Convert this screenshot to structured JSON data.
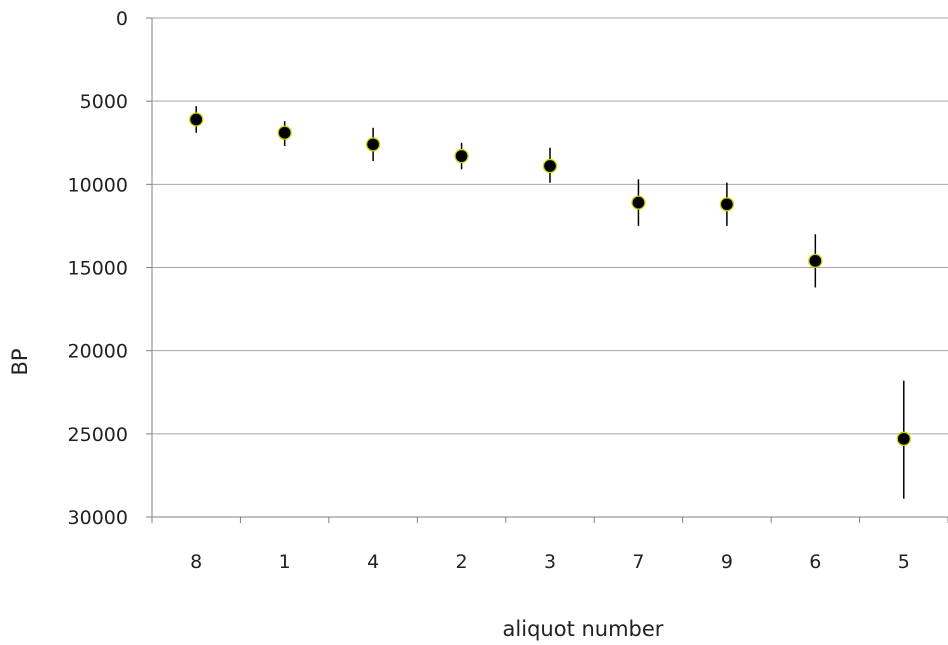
{
  "chart_data": {
    "type": "scatter",
    "xlabel": "aliquot number",
    "ylabel": "BP",
    "categories": [
      "8",
      "1",
      "4",
      "2",
      "3",
      "7",
      "9",
      "6",
      "5"
    ],
    "series": [
      {
        "values": [
          6100,
          6900,
          7600,
          8300,
          8900,
          11100,
          11200,
          14600,
          25300
        ],
        "error_low": [
          5300,
          6200,
          6600,
          7500,
          7800,
          9700,
          9900,
          13000,
          21800
        ],
        "error_high": [
          6900,
          7700,
          8600,
          9100,
          9900,
          12500,
          12500,
          16200,
          28900
        ]
      }
    ],
    "yticks": [
      "0",
      "5000",
      "10000",
      "15000",
      "20000",
      "25000",
      "30000"
    ],
    "ylim": [
      0,
      30000
    ],
    "y_inverted": true,
    "grid": true,
    "marker_color": "#000000",
    "marker_edge_color": "#c8d400",
    "gridline_color": "#a6a6a6"
  }
}
